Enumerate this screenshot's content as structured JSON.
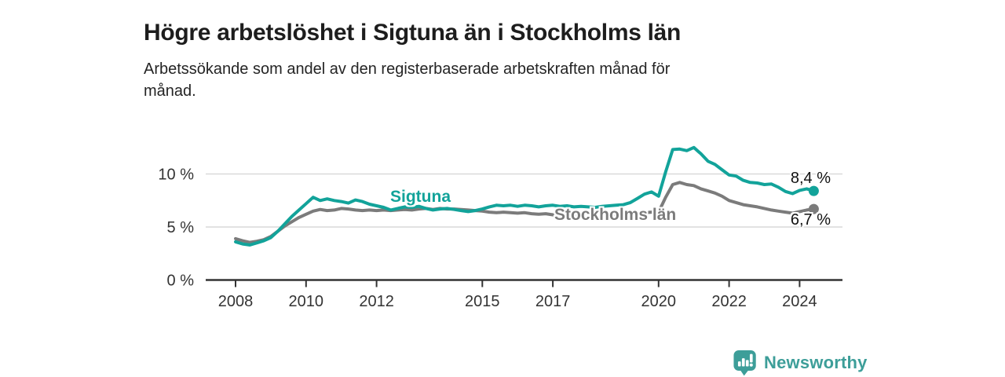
{
  "chart_data": {
    "type": "line",
    "title": "Högre arbetslöshet i Sigtuna än i Stockholms län",
    "subtitle": "Arbetssökande som andel av den registerbaserade arbetskraften månad för\nmånad.",
    "unit": "%",
    "x_axis": {
      "ticks": [
        2008,
        2010,
        2012,
        2015,
        2017,
        2020,
        2022,
        2024
      ],
      "tick_labels": [
        "2008",
        "2010",
        "2012",
        "2015",
        "2017",
        "2020",
        "2022",
        "2024"
      ],
      "range": [
        2007.2,
        2025.2
      ]
    },
    "y_axis": {
      "ticks": [
        {
          "value": 0,
          "label": "0 %"
        },
        {
          "value": 5,
          "label": "5 %"
        },
        {
          "value": 10,
          "label": "10 %"
        }
      ],
      "range": [
        0,
        13.7
      ],
      "grid": true
    },
    "x_start": 2008.0,
    "x_step_years": 0.2,
    "legend_position": "inline-labels",
    "series": [
      {
        "name": "Sigtuna",
        "color": "#12a39a",
        "end_label": "8,4 %",
        "end_value": 8.4,
        "values": [
          3.6,
          3.4,
          3.3,
          3.5,
          3.7,
          4.0,
          4.6,
          5.3,
          6.0,
          6.6,
          7.2,
          7.8,
          7.5,
          7.65,
          7.5,
          7.4,
          7.25,
          7.55,
          7.4,
          7.15,
          7.0,
          6.85,
          6.6,
          6.75,
          6.9,
          6.85,
          6.95,
          6.75,
          6.6,
          6.7,
          6.75,
          6.65,
          6.55,
          6.45,
          6.55,
          6.7,
          6.9,
          7.05,
          7.0,
          7.05,
          6.95,
          7.05,
          7.0,
          6.9,
          7.0,
          7.05,
          6.95,
          7.0,
          6.9,
          6.95,
          6.9,
          6.85,
          6.95,
          7.0,
          7.05,
          7.1,
          7.3,
          7.7,
          8.1,
          8.3,
          7.9,
          10.2,
          12.3,
          12.35,
          12.2,
          12.5,
          11.9,
          11.2,
          10.9,
          10.4,
          9.9,
          9.8,
          9.4,
          9.2,
          9.15,
          9.0,
          9.05,
          8.75,
          8.35,
          8.15,
          8.45,
          8.6,
          8.4
        ]
      },
      {
        "name": "Stockholms län",
        "color": "#7b7b7b",
        "end_label": "6,7 %",
        "end_value": 6.7,
        "values": [
          3.9,
          3.7,
          3.55,
          3.65,
          3.8,
          4.1,
          4.6,
          5.1,
          5.5,
          5.9,
          6.2,
          6.5,
          6.65,
          6.55,
          6.6,
          6.75,
          6.7,
          6.6,
          6.55,
          6.6,
          6.55,
          6.6,
          6.55,
          6.6,
          6.65,
          6.6,
          6.7,
          6.75,
          6.65,
          6.75,
          6.7,
          6.7,
          6.65,
          6.6,
          6.55,
          6.5,
          6.4,
          6.35,
          6.4,
          6.35,
          6.3,
          6.35,
          6.25,
          6.2,
          6.25,
          6.15,
          6.2,
          6.15,
          6.1,
          6.15,
          6.1,
          6.05,
          6.1,
          6.15,
          6.1,
          6.2,
          6.25,
          6.3,
          6.35,
          6.4,
          6.4,
          7.8,
          9.0,
          9.2,
          9.0,
          8.9,
          8.6,
          8.4,
          8.2,
          7.9,
          7.5,
          7.3,
          7.1,
          7.0,
          6.9,
          6.75,
          6.6,
          6.5,
          6.4,
          6.3,
          6.45,
          6.6,
          6.7
        ]
      }
    ]
  },
  "branding": {
    "logo_text": "Newsworthy",
    "logo_icon": "bar-chart-speech-bubble",
    "brand_color": "#3d9e99"
  }
}
